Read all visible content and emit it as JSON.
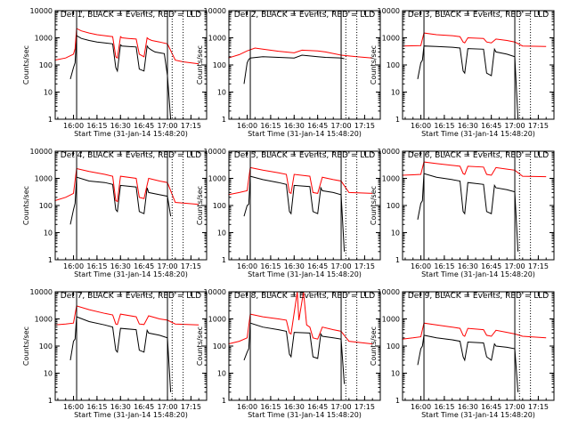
{
  "colors": {
    "events": "#000000",
    "lld": "#ff0000",
    "axes": "#000000",
    "background": "#ffffff"
  },
  "shared": {
    "xlabel": "Start Time (31-Jan-14 15:48:20)",
    "ylabel": "Counts/sec",
    "x_tick_labels": [
      "16:00",
      "16:15",
      "16:30",
      "16:45",
      "17:00",
      "17:15"
    ],
    "y_tick_labels": [
      "1",
      "10",
      "100",
      "1000",
      "10000"
    ]
  },
  "chart_data": [
    {
      "type": "line",
      "title": "Det 1, BLACK = Events, RED = LLD",
      "xlim": [
        "15:48:20",
        "17:25"
      ],
      "ylim": [
        1,
        10000
      ],
      "yscale": "log",
      "series": [
        {
          "name": "Events",
          "color": "#000000",
          "x": [
            "15:58",
            "16:00",
            "16:01",
            "16:02",
            "16:05",
            "16:10",
            "16:15",
            "16:20",
            "16:25",
            "16:27",
            "16:28",
            "16:30",
            "16:31",
            "16:35",
            "16:40",
            "16:42",
            "16:45",
            "16:47",
            "16:48",
            "16:50",
            "16:52",
            "16:55",
            "16:58",
            "17:00",
            "17:02"
          ],
          "y": [
            30,
            80,
            120,
            1200,
            950,
            800,
            700,
            650,
            600,
            80,
            60,
            550,
            500,
            480,
            460,
            70,
            60,
            500,
            420,
            350,
            300,
            280,
            260,
            40,
            1
          ]
        },
        {
          "name": "LLD",
          "color": "#ff0000",
          "x": [
            "15:48",
            "15:55",
            "16:00",
            "16:01",
            "16:02",
            "16:05",
            "16:10",
            "16:15",
            "16:20",
            "16:25",
            "16:27",
            "16:28",
            "16:30",
            "16:31",
            "16:35",
            "16:40",
            "16:42",
            "16:45",
            "16:47",
            "16:48",
            "16:50",
            "16:55",
            "17:00",
            "17:05",
            "17:10",
            "17:15",
            "17:20"
          ],
          "y": [
            150,
            180,
            250,
            400,
            2200,
            1800,
            1500,
            1300,
            1200,
            1100,
            200,
            180,
            1100,
            1000,
            950,
            900,
            250,
            200,
            1000,
            900,
            800,
            700,
            600,
            150,
            130,
            120,
            110
          ]
        }
      ],
      "markers_solid": [
        "16:02",
        "17:00"
      ],
      "markers_dotted": [
        "17:03",
        "17:10"
      ]
    },
    {
      "type": "line",
      "title": "Det 2, BLACK = Events, RED = LLD",
      "xlim": [
        "15:48:20",
        "17:25"
      ],
      "ylim": [
        1,
        10000
      ],
      "yscale": "log",
      "series": [
        {
          "name": "Events",
          "color": "#000000",
          "x": [
            "15:58",
            "16:00",
            "16:01",
            "16:02",
            "16:10",
            "16:20",
            "16:30",
            "16:35",
            "16:45",
            "16:50",
            "17:00",
            "17:02"
          ],
          "y": [
            20,
            120,
            160,
            180,
            200,
            190,
            180,
            230,
            200,
            190,
            180,
            170
          ]
        },
        {
          "name": "LLD",
          "color": "#ff0000",
          "x": [
            "15:48",
            "15:55",
            "16:00",
            "16:05",
            "16:10",
            "16:20",
            "16:30",
            "16:35",
            "16:45",
            "16:50",
            "17:00",
            "17:10",
            "17:20"
          ],
          "y": [
            180,
            240,
            330,
            420,
            380,
            320,
            280,
            350,
            330,
            300,
            230,
            200,
            180
          ]
        }
      ],
      "markers_solid": [
        "16:02",
        "17:00"
      ],
      "markers_dotted": [
        "17:03",
        "17:10"
      ]
    },
    {
      "type": "line",
      "title": "Det 3, BLACK = Events, RED = LLD",
      "xlim": [
        "15:48:20",
        "17:25"
      ],
      "ylim": [
        1,
        10000
      ],
      "yscale": "log",
      "series": [
        {
          "name": "Events",
          "color": "#000000",
          "x": [
            "15:58",
            "16:00",
            "16:01",
            "16:02",
            "16:10",
            "16:20",
            "16:25",
            "16:27",
            "16:28",
            "16:30",
            "16:40",
            "16:42",
            "16:45",
            "16:47",
            "16:48",
            "16:55",
            "17:00",
            "17:02"
          ],
          "y": [
            30,
            120,
            150,
            500,
            480,
            450,
            420,
            60,
            50,
            400,
            380,
            50,
            40,
            380,
            300,
            250,
            200,
            1
          ]
        },
        {
          "name": "LLD",
          "color": "#ff0000",
          "x": [
            "15:48",
            "16:00",
            "16:02",
            "16:10",
            "16:20",
            "16:25",
            "16:27",
            "16:28",
            "16:30",
            "16:40",
            "16:42",
            "16:45",
            "16:48",
            "16:55",
            "17:00",
            "17:05",
            "17:20"
          ],
          "y": [
            500,
            520,
            1500,
            1300,
            1200,
            1100,
            700,
            650,
            1000,
            950,
            700,
            650,
            900,
            800,
            700,
            500,
            480
          ]
        }
      ],
      "markers_solid": [
        "16:02",
        "17:00"
      ],
      "markers_dotted": [
        "17:03",
        "17:10"
      ]
    },
    {
      "type": "line",
      "title": "Det 4, BLACK = Events, RED = LLD",
      "xlim": [
        "15:48:20",
        "17:25"
      ],
      "ylim": [
        1,
        10000
      ],
      "yscale": "log",
      "series": [
        {
          "name": "Events",
          "color": "#000000",
          "x": [
            "15:58",
            "16:00",
            "16:01",
            "16:02",
            "16:10",
            "16:20",
            "16:25",
            "16:27",
            "16:28",
            "16:30",
            "16:40",
            "16:42",
            "16:45",
            "16:47",
            "16:48",
            "16:55",
            "17:00",
            "17:02"
          ],
          "y": [
            20,
            70,
            120,
            1100,
            800,
            700,
            600,
            70,
            60,
            550,
            480,
            60,
            50,
            450,
            300,
            250,
            220,
            40
          ]
        },
        {
          "name": "LLD",
          "color": "#ff0000",
          "x": [
            "15:48",
            "15:55",
            "16:00",
            "16:02",
            "16:10",
            "16:20",
            "16:25",
            "16:27",
            "16:28",
            "16:30",
            "16:40",
            "16:42",
            "16:45",
            "16:48",
            "16:55",
            "17:00",
            "17:05",
            "17:20"
          ],
          "y": [
            150,
            200,
            280,
            2300,
            1800,
            1400,
            1200,
            150,
            140,
            1200,
            1000,
            200,
            180,
            1000,
            800,
            700,
            130,
            110
          ]
        }
      ],
      "markers_solid": [
        "16:02",
        "17:00"
      ],
      "markers_dotted": [
        "17:03",
        "17:10"
      ]
    },
    {
      "type": "line",
      "title": "Det 5, BLACK = Events, RED = LLD",
      "xlim": [
        "15:48:20",
        "17:25"
      ],
      "ylim": [
        1,
        10000
      ],
      "yscale": "log",
      "series": [
        {
          "name": "Events",
          "color": "#000000",
          "x": [
            "15:58",
            "16:00",
            "16:01",
            "16:02",
            "16:10",
            "16:20",
            "16:25",
            "16:27",
            "16:28",
            "16:30",
            "16:40",
            "16:42",
            "16:45",
            "16:47",
            "16:48",
            "16:55",
            "17:00",
            "17:02"
          ],
          "y": [
            40,
            100,
            110,
            1200,
            900,
            700,
            600,
            60,
            50,
            550,
            500,
            60,
            50,
            450,
            350,
            300,
            250,
            2
          ]
        },
        {
          "name": "LLD",
          "color": "#ff0000",
          "x": [
            "15:48",
            "15:55",
            "16:00",
            "16:02",
            "16:10",
            "16:20",
            "16:25",
            "16:27",
            "16:28",
            "16:30",
            "16:40",
            "16:42",
            "16:45",
            "16:48",
            "16:55",
            "17:00",
            "17:05",
            "17:20"
          ],
          "y": [
            250,
            300,
            350,
            2500,
            2000,
            1600,
            1400,
            300,
            280,
            1400,
            1200,
            300,
            280,
            1100,
            900,
            800,
            300,
            280
          ]
        }
      ],
      "markers_solid": [
        "16:02",
        "17:00"
      ],
      "markers_dotted": [
        "17:03",
        "17:10"
      ]
    },
    {
      "type": "line",
      "title": "Det 6, BLACK = Events, RED = LLD",
      "xlim": [
        "15:48:20",
        "17:25"
      ],
      "ylim": [
        1,
        10000
      ],
      "yscale": "log",
      "series": [
        {
          "name": "Events",
          "color": "#000000",
          "x": [
            "15:58",
            "16:00",
            "16:01",
            "16:02",
            "16:10",
            "16:20",
            "16:25",
            "16:27",
            "16:28",
            "16:30",
            "16:40",
            "16:42",
            "16:45",
            "16:47",
            "16:48",
            "16:55",
            "17:00",
            "17:02"
          ],
          "y": [
            30,
            120,
            150,
            1500,
            1100,
            900,
            800,
            60,
            50,
            700,
            600,
            60,
            50,
            550,
            450,
            380,
            320,
            2
          ]
        },
        {
          "name": "LLD",
          "color": "#ff0000",
          "x": [
            "15:48",
            "15:55",
            "16:00",
            "16:02",
            "16:10",
            "16:20",
            "16:25",
            "16:27",
            "16:28",
            "16:30",
            "16:40",
            "16:42",
            "16:45",
            "16:48",
            "16:55",
            "17:00",
            "17:05",
            "17:20"
          ],
          "y": [
            1300,
            1350,
            1400,
            4000,
            3500,
            3000,
            2800,
            1500,
            1400,
            2800,
            2600,
            1400,
            1300,
            2500,
            2200,
            2000,
            1200,
            1150
          ]
        }
      ],
      "markers_solid": [
        "16:02",
        "17:00"
      ],
      "markers_dotted": [
        "17:03",
        "17:10"
      ]
    },
    {
      "type": "line",
      "title": "Det 7, BLACK = Events, RED = LLD",
      "xlim": [
        "15:48:20",
        "17:25"
      ],
      "ylim": [
        1,
        10000
      ],
      "yscale": "log",
      "series": [
        {
          "name": "Events",
          "color": "#000000",
          "x": [
            "15:58",
            "16:00",
            "16:01",
            "16:02",
            "16:10",
            "16:20",
            "16:25",
            "16:27",
            "16:28",
            "16:30",
            "16:40",
            "16:42",
            "16:45",
            "16:47",
            "16:48",
            "16:55",
            "17:00",
            "17:02"
          ],
          "y": [
            30,
            150,
            180,
            1200,
            800,
            600,
            500,
            70,
            60,
            450,
            400,
            70,
            60,
            380,
            300,
            250,
            200,
            2
          ]
        },
        {
          "name": "LLD",
          "color": "#ff0000",
          "x": [
            "15:48",
            "15:55",
            "16:00",
            "16:02",
            "16:10",
            "16:20",
            "16:25",
            "16:27",
            "16:28",
            "16:30",
            "16:40",
            "16:42",
            "16:45",
            "16:48",
            "16:55",
            "17:00",
            "17:05",
            "17:20"
          ],
          "y": [
            600,
            650,
            700,
            3000,
            2200,
            1600,
            1400,
            650,
            620,
            1500,
            1200,
            650,
            620,
            1300,
            1000,
            900,
            650,
            600
          ]
        }
      ],
      "markers_solid": [
        "16:02",
        "17:00"
      ],
      "markers_dotted": [
        "17:03",
        "17:10"
      ]
    },
    {
      "type": "line",
      "title": "Det 8, BLACK = Events, RED = LLD",
      "xlim": [
        "15:48:20",
        "17:25"
      ],
      "ylim": [
        1,
        10000
      ],
      "yscale": "log",
      "series": [
        {
          "name": "Events",
          "color": "#000000",
          "x": [
            "15:58",
            "16:00",
            "16:01",
            "16:02",
            "16:10",
            "16:20",
            "16:25",
            "16:27",
            "16:28",
            "16:30",
            "16:40",
            "16:42",
            "16:45",
            "16:47",
            "16:48",
            "16:55",
            "17:00",
            "17:02"
          ],
          "y": [
            30,
            60,
            80,
            700,
            500,
            400,
            350,
            50,
            40,
            320,
            300,
            40,
            35,
            280,
            230,
            200,
            180,
            4
          ]
        },
        {
          "name": "LLD",
          "color": "#ff0000",
          "x": [
            "15:48",
            "15:55",
            "16:00",
            "16:02",
            "16:10",
            "16:20",
            "16:25",
            "16:27",
            "16:28",
            "16:32",
            "16:33",
            "16:36",
            "16:38",
            "16:40",
            "16:42",
            "16:45",
            "16:48",
            "16:55",
            "17:00",
            "17:05",
            "17:20"
          ],
          "y": [
            120,
            150,
            200,
            1500,
            1200,
            1000,
            900,
            300,
            280,
            10000,
            900,
            10000,
            600,
            500,
            200,
            180,
            500,
            400,
            350,
            150,
            120
          ]
        }
      ],
      "markers_solid": [
        "16:02",
        "17:00"
      ],
      "markers_dotted": [
        "17:03",
        "17:10"
      ]
    },
    {
      "type": "line",
      "title": "Det 9, BLACK = Events, RED = LLD",
      "xlim": [
        "15:48:20",
        "17:25"
      ],
      "ylim": [
        1,
        10000
      ],
      "yscale": "log",
      "series": [
        {
          "name": "Events",
          "color": "#000000",
          "x": [
            "15:58",
            "16:00",
            "16:01",
            "16:02",
            "16:10",
            "16:20",
            "16:25",
            "16:27",
            "16:28",
            "16:30",
            "16:40",
            "16:42",
            "16:45",
            "16:47",
            "16:48",
            "16:55",
            "17:00",
            "17:02"
          ],
          "y": [
            20,
            80,
            100,
            250,
            200,
            170,
            150,
            40,
            30,
            140,
            130,
            40,
            30,
            120,
            100,
            90,
            80,
            2
          ]
        },
        {
          "name": "LLD",
          "color": "#ff0000",
          "x": [
            "15:48",
            "15:55",
            "16:00",
            "16:02",
            "16:10",
            "16:20",
            "16:25",
            "16:27",
            "16:28",
            "16:30",
            "16:40",
            "16:42",
            "16:45",
            "16:48",
            "16:55",
            "17:00",
            "17:05",
            "17:20"
          ],
          "y": [
            180,
            200,
            220,
            700,
            600,
            500,
            450,
            250,
            230,
            450,
            400,
            250,
            230,
            380,
            320,
            280,
            230,
            200
          ]
        }
      ],
      "markers_solid": [
        "16:02",
        "17:00"
      ],
      "markers_dotted": [
        "17:03",
        "17:10"
      ]
    }
  ]
}
